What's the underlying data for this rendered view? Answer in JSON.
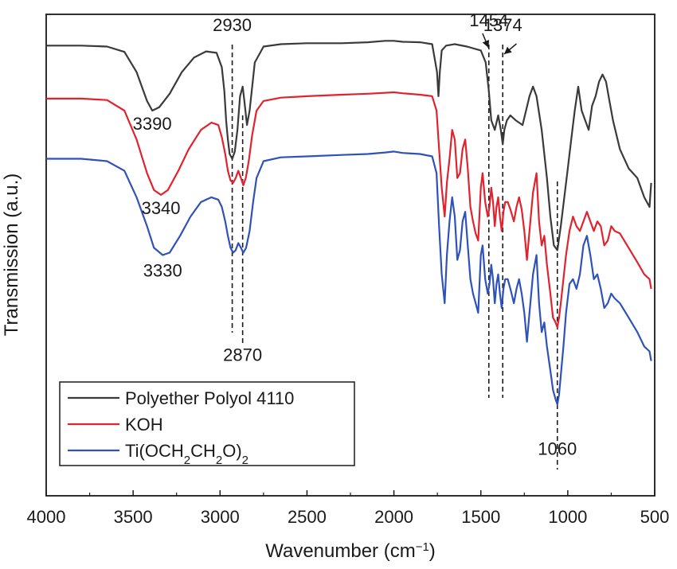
{
  "chart_data": {
    "type": "line",
    "xlabel": "Wavenumber (cm",
    "xlabel_sup": "−1",
    "xlabel_end": ")",
    "ylabel": "Transmission (a.u.)",
    "xlim": [
      4000,
      500
    ],
    "x_reversed": true,
    "x_ticks": [
      4000,
      3500,
      3000,
      2500,
      2000,
      1500,
      1000,
      500
    ],
    "x_tick_labels": [
      "4000",
      "3500",
      "3000",
      "2500",
      "2000",
      "1500",
      "1000",
      "500"
    ],
    "y_ticks_shown": false,
    "ylim": [
      0,
      100
    ],
    "legend_position": "bottom-left",
    "series": [
      {
        "name": "Polyether Polyol 4110",
        "color": "#3a3a3a",
        "x": [
          4000,
          3800,
          3650,
          3550,
          3480,
          3420,
          3390,
          3350,
          3290,
          3220,
          3150,
          3080,
          3020,
          2990,
          2975,
          2965,
          2955,
          2945,
          2930,
          2915,
          2900,
          2885,
          2870,
          2860,
          2845,
          2830,
          2800,
          2750,
          2650,
          2500,
          2300,
          2150,
          2050,
          2000,
          1950,
          1850,
          1780,
          1752,
          1744,
          1736,
          1725,
          1700,
          1650,
          1580,
          1500,
          1472,
          1454,
          1440,
          1420,
          1400,
          1385,
          1374,
          1365,
          1350,
          1330,
          1300,
          1260,
          1220,
          1200,
          1180,
          1150,
          1120,
          1100,
          1080,
          1060,
          1040,
          1020,
          1000,
          980,
          960,
          940,
          920,
          900,
          880,
          860,
          840,
          820,
          800,
          780,
          760,
          740,
          700,
          650,
          600,
          560,
          530,
          520
        ],
        "y": [
          93.5,
          93.5,
          93.3,
          92.2,
          88,
          82,
          80,
          80.7,
          83.5,
          88,
          91,
          92.3,
          92,
          89,
          84,
          78,
          74,
          71,
          70,
          71.5,
          76,
          83,
          85,
          82,
          77,
          80,
          90,
          93.3,
          93.8,
          94,
          94,
          94.2,
          94.5,
          94.5,
          94.3,
          94.2,
          93.8,
          88,
          83,
          88,
          92.5,
          93.5,
          93.8,
          93.3,
          92.5,
          90,
          84,
          78,
          76,
          79,
          76,
          73,
          76,
          78,
          79,
          78,
          77,
          83,
          85,
          83,
          76,
          66,
          58,
          52,
          51,
          56,
          62,
          68,
          74,
          80,
          85,
          80,
          78,
          76,
          81,
          83,
          86,
          87.5,
          86,
          82,
          78,
          72,
          68,
          66,
          62,
          60,
          65
        ]
      },
      {
        "name": "KOH",
        "color": "#e0232e",
        "x": [
          4000,
          3800,
          3650,
          3550,
          3480,
          3420,
          3380,
          3340,
          3300,
          3240,
          3180,
          3110,
          3050,
          3010,
          2990,
          2970,
          2955,
          2940,
          2925,
          2910,
          2895,
          2880,
          2866,
          2852,
          2835,
          2815,
          2790,
          2750,
          2650,
          2500,
          2300,
          2150,
          2050,
          2000,
          1950,
          1850,
          1780,
          1755,
          1740,
          1725,
          1708,
          1695,
          1680,
          1665,
          1650,
          1635,
          1620,
          1605,
          1590,
          1575,
          1560,
          1545,
          1530,
          1515,
          1500,
          1490,
          1475,
          1460,
          1450,
          1440,
          1430,
          1420,
          1410,
          1400,
          1390,
          1380,
          1370,
          1360,
          1345,
          1330,
          1310,
          1295,
          1280,
          1265,
          1250,
          1235,
          1220,
          1200,
          1180,
          1165,
          1150,
          1135,
          1120,
          1100,
          1085,
          1070,
          1060,
          1050,
          1040,
          1025,
          1010,
          990,
          970,
          950,
          930,
          910,
          890,
          870,
          850,
          830,
          810,
          790,
          770,
          750,
          730,
          700,
          650,
          600,
          560,
          530,
          520
        ],
        "y": [
          82.5,
          82.5,
          82.2,
          80,
          74,
          67,
          63.5,
          62.5,
          63.5,
          67.5,
          72,
          76,
          77.5,
          77,
          74.5,
          71,
          67.5,
          65.5,
          65,
          66,
          67.5,
          66,
          64.5,
          66,
          69.5,
          75,
          80,
          82,
          82.7,
          83,
          83.3,
          83.5,
          83.7,
          83.8,
          83.6,
          83.3,
          83,
          80,
          72,
          64,
          58,
          65,
          70,
          76,
          74,
          66,
          67,
          72,
          74,
          68,
          60,
          57,
          54.5,
          53,
          64,
          67,
          61,
          58,
          60,
          64,
          61,
          56,
          60,
          62,
          58,
          55,
          59,
          61,
          61,
          59.5,
          57,
          60,
          62,
          59.5,
          55,
          49,
          55,
          63,
          67,
          57,
          52,
          54,
          48,
          42,
          37,
          36,
          35,
          37,
          40,
          45,
          50,
          55,
          58,
          56,
          55,
          57,
          59,
          57,
          55,
          57,
          56,
          52,
          53,
          56,
          55,
          54.5,
          51.5,
          48.5,
          46,
          45,
          43
        ]
      },
      {
        "name": "Ti(OCH2CH2O)2",
        "name_parts": [
          "Ti(OCH",
          "2",
          "CH",
          "2",
          "O)",
          "2"
        ],
        "color": "#2f52b8",
        "x": [
          4000,
          3800,
          3650,
          3550,
          3480,
          3420,
          3380,
          3330,
          3290,
          3230,
          3170,
          3110,
          3050,
          3010,
          2990,
          2970,
          2955,
          2940,
          2925,
          2910,
          2895,
          2880,
          2866,
          2850,
          2830,
          2810,
          2790,
          2750,
          2650,
          2500,
          2300,
          2150,
          2050,
          2000,
          1950,
          1850,
          1780,
          1755,
          1740,
          1725,
          1708,
          1695,
          1680,
          1665,
          1650,
          1635,
          1620,
          1605,
          1590,
          1575,
          1560,
          1545,
          1530,
          1515,
          1500,
          1490,
          1475,
          1460,
          1450,
          1440,
          1430,
          1420,
          1410,
          1400,
          1390,
          1380,
          1370,
          1360,
          1345,
          1330,
          1310,
          1295,
          1280,
          1265,
          1250,
          1235,
          1220,
          1200,
          1180,
          1165,
          1150,
          1135,
          1120,
          1100,
          1085,
          1070,
          1060,
          1050,
          1040,
          1025,
          1010,
          990,
          970,
          950,
          930,
          910,
          890,
          870,
          850,
          830,
          810,
          790,
          770,
          750,
          730,
          700,
          650,
          600,
          560,
          530,
          520
        ],
        "y": [
          70,
          70,
          69.5,
          67.5,
          62,
          56,
          51.5,
          50,
          50.5,
          54,
          58,
          61,
          62,
          61.5,
          60,
          57,
          54,
          51.5,
          50.5,
          51,
          52.5,
          51.5,
          50.5,
          51.5,
          55,
          61,
          66,
          69.5,
          70.3,
          70.5,
          70.8,
          71,
          71.3,
          71.5,
          71.2,
          71,
          70.5,
          67,
          56,
          46,
          40,
          50,
          57,
          62,
          58,
          49,
          51,
          57,
          59,
          52,
          45,
          42,
          40,
          38,
          50,
          52,
          45,
          42,
          44,
          48,
          45,
          40,
          44,
          46,
          42,
          39,
          43,
          45,
          45,
          43,
          40,
          43,
          45,
          42,
          38,
          32,
          38,
          46,
          50,
          40,
          34,
          36,
          31,
          26,
          22,
          20,
          19,
          21,
          25,
          31,
          38,
          44,
          45,
          43,
          46,
          52,
          54,
          50,
          45,
          46,
          43,
          39,
          40,
          42,
          41,
          40,
          37,
          34,
          31,
          30,
          28
        ]
      }
    ],
    "annotations": [
      {
        "text": "2930",
        "x": 2930,
        "y": 96.5
      },
      {
        "text": "3390",
        "x": 3390,
        "y": 76
      },
      {
        "text": "3340",
        "x": 3340,
        "y": 58.5
      },
      {
        "text": "3330",
        "x": 3330,
        "y": 45.5
      },
      {
        "text": "2870",
        "x": 2870,
        "y": 28
      },
      {
        "text": "1454",
        "x": 1454,
        "y": 97.5
      },
      {
        "text": "1374",
        "x": 1374,
        "y": 96.5
      },
      {
        "text": "1060",
        "x": 1060,
        "y": 8.5
      }
    ],
    "reference_lines": [
      2930,
      2870,
      1454,
      1374,
      1060
    ],
    "legend_subscripts": true
  }
}
